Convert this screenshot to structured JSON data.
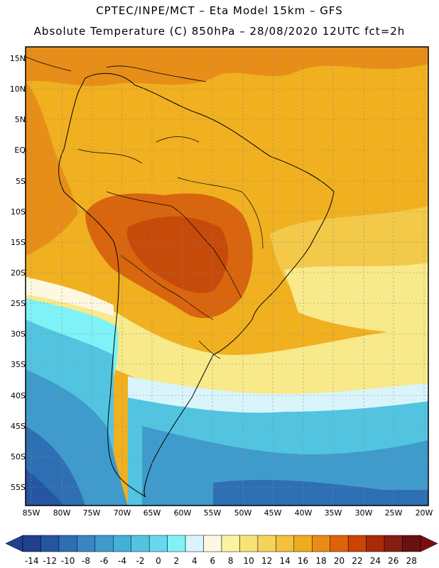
{
  "header": {
    "line1": "CPTEC/INPE/MCT –  Eta Model 15km – GFS",
    "line2": "Absolute Temperature (C) 850hPa – 28/08/2020 12UTC fct=2h"
  },
  "axes": {
    "lat_ticks": [
      "15N",
      "10N",
      "5N",
      "EQ",
      "5S",
      "10S",
      "15S",
      "20S",
      "25S",
      "30S",
      "35S",
      "40S",
      "45S",
      "50S",
      "55S"
    ],
    "lon_ticks": [
      "85W",
      "80W",
      "75W",
      "70W",
      "65W",
      "60W",
      "55W",
      "50W",
      "45W",
      "40W",
      "35W",
      "30W",
      "25W",
      "20W"
    ]
  },
  "colorbar": {
    "labels": [
      "-14",
      "-12",
      "-10",
      "-8",
      "-6",
      "-4",
      "-2",
      "0",
      "2",
      "4",
      "6",
      "8",
      "10",
      "12",
      "14",
      "16",
      "18",
      "20",
      "22",
      "24",
      "26",
      "28"
    ],
    "colors": [
      "#1f3f8f",
      "#2656a3",
      "#2e6fb4",
      "#3a86c2",
      "#3f9bcc",
      "#44b0d6",
      "#52c4e0",
      "#66d8ec",
      "#7ff2f7",
      "#d9f5fb",
      "#fdf8e2",
      "#fbf3a0",
      "#f8e476",
      "#f5d35a",
      "#f2c13e",
      "#efac1f",
      "#e98b14",
      "#de620c",
      "#c94406",
      "#a82a06",
      "#861e10",
      "#6b1010"
    ]
  },
  "map_colors": {
    "hot1": "#f0b020",
    "hot2": "#e78e19",
    "hot3": "#d9650f",
    "hot4": "#c64b0a",
    "warm": "#f3c94a",
    "mild": "#f8e98a",
    "pale": "#fdf8e2",
    "cool1": "#d9f5fb",
    "cool2": "#7ff2f7",
    "cool3": "#52c4e0",
    "cold1": "#3f9bcc",
    "cold2": "#2e6fb4",
    "cold3": "#2656a3"
  }
}
